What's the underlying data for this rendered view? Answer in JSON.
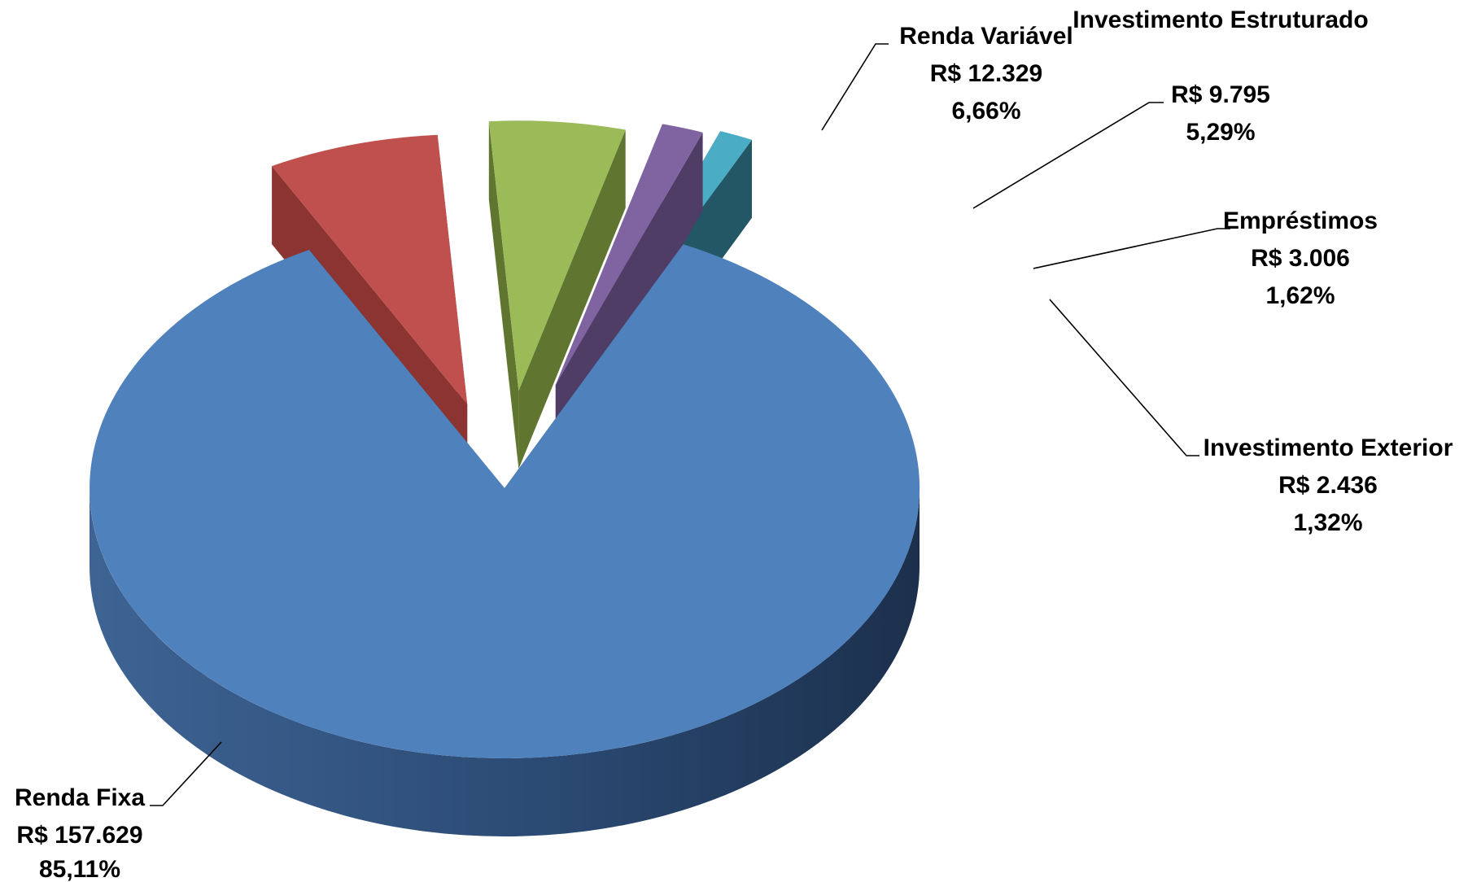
{
  "chart_data": {
    "type": "pie",
    "style": "3d-exploded",
    "slices": [
      {
        "name": "Renda Fixa",
        "value_label": "R$ 157.629",
        "percent_label": "85,11%",
        "value": 157629,
        "percent": 85.11,
        "color": "#4F81BD",
        "side_color": "#2F4F78"
      },
      {
        "name": "Renda Variável",
        "value_label": "R$ 12.329",
        "percent_label": "6,66%",
        "value": 12329,
        "percent": 6.66,
        "color": "#C0504D",
        "side_color": "#8B3432"
      },
      {
        "name": "Investimento Estruturado",
        "value_label": "R$ 9.795",
        "percent_label": "5,29%",
        "value": 9795,
        "percent": 5.29,
        "color": "#9BBB59",
        "side_color": "#5F7530"
      },
      {
        "name": "Empréstimos",
        "value_label": "R$ 3.006",
        "percent_label": "1,62%",
        "value": 3006,
        "percent": 1.62,
        "color": "#8064A2",
        "side_color": "#4F3D66"
      },
      {
        "name": "Investimento Exterior",
        "value_label": "R$ 2.436",
        "percent_label": "1,32%",
        "value": 2436,
        "percent": 1.32,
        "color": "#4BACC6",
        "side_color": "#235766"
      }
    ]
  }
}
